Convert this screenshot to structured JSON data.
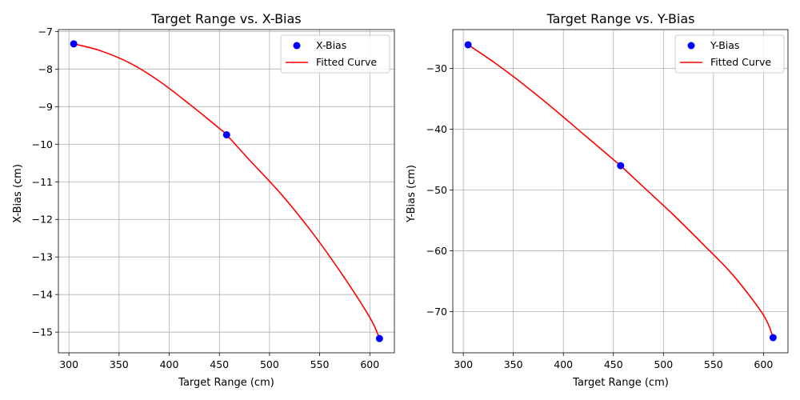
{
  "chart_data": [
    {
      "type": "scatter",
      "title": "Target Range vs. X-Bias",
      "xlabel": "Target Range (cm)",
      "ylabel": "X-Bias (cm)",
      "xlim": [
        289.5,
        624.5
      ],
      "ylim": [
        -15.55,
        -6.95
      ],
      "xticks": [
        300,
        350,
        400,
        450,
        500,
        550,
        600
      ],
      "xtick_labels": [
        "300",
        "350",
        "400",
        "450",
        "500",
        "550",
        "600"
      ],
      "yticks": [
        -15,
        -14,
        -13,
        -12,
        -11,
        -10,
        -9,
        -8,
        -7
      ],
      "ytick_labels": [
        "−15",
        "−14",
        "−13",
        "−12",
        "−11",
        "−10",
        "−9",
        "−8",
        "−7"
      ],
      "grid": true,
      "legend_position": "top-right",
      "series": [
        {
          "name": "X-Bias",
          "kind": "scatter",
          "color": "#0000ff",
          "points": [
            [
              304.8,
              -7.33
            ],
            [
              457.2,
              -9.75
            ],
            [
              609.6,
              -15.17
            ]
          ]
        },
        {
          "name": "Fitted Curve",
          "kind": "line",
          "color": "#ff0000",
          "points": [
            [
              304.8,
              -7.33
            ],
            [
              330,
              -7.5
            ],
            [
              360,
              -7.83
            ],
            [
              390,
              -8.32
            ],
            [
              420,
              -8.93
            ],
            [
              450,
              -9.58
            ],
            [
              457.2,
              -9.75
            ],
            [
              480,
              -10.42
            ],
            [
              510,
              -11.28
            ],
            [
              540,
              -12.26
            ],
            [
              570,
              -13.37
            ],
            [
              600,
              -14.61
            ],
            [
              609.6,
              -15.17
            ]
          ]
        }
      ]
    },
    {
      "type": "scatter",
      "title": "Target Range vs. Y-Bias",
      "xlabel": "Target Range (cm)",
      "ylabel": "Y-Bias (cm)",
      "xlim": [
        289.5,
        624.5
      ],
      "ylim": [
        -76.8,
        -23.6
      ],
      "xticks": [
        300,
        350,
        400,
        450,
        500,
        550,
        600
      ],
      "xtick_labels": [
        "300",
        "350",
        "400",
        "450",
        "500",
        "550",
        "600"
      ],
      "yticks": [
        -70,
        -60,
        -50,
        -40,
        -30
      ],
      "ytick_labels": [
        "−70",
        "−60",
        "−50",
        "−40",
        "−30"
      ],
      "grid": true,
      "legend_position": "top-right",
      "series": [
        {
          "name": "Y-Bias",
          "kind": "scatter",
          "color": "#0000ff",
          "points": [
            [
              304.8,
              -26.1
            ],
            [
              457.2,
              -46.0
            ],
            [
              609.6,
              -74.3
            ]
          ]
        },
        {
          "name": "Fitted Curve",
          "kind": "line",
          "color": "#ff0000",
          "points": [
            [
              304.8,
              -26.1
            ],
            [
              330,
              -28.9
            ],
            [
              360,
              -32.6
            ],
            [
              390,
              -36.6
            ],
            [
              420,
              -40.8
            ],
            [
              450,
              -45.0
            ],
            [
              457.2,
              -46.0
            ],
            [
              480,
              -49.5
            ],
            [
              510,
              -54.1
            ],
            [
              540,
              -59.0
            ],
            [
              570,
              -64.1
            ],
            [
              600,
              -70.6
            ],
            [
              609.6,
              -74.3
            ]
          ]
        }
      ]
    }
  ]
}
